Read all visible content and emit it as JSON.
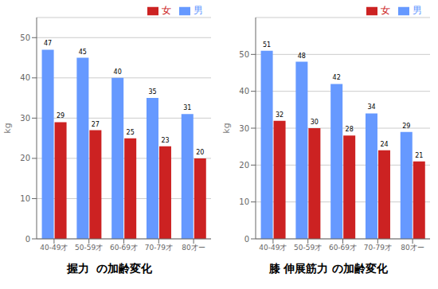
{
  "chart_data": [
    {
      "type": "bar",
      "title": "握力  の加齢変化",
      "categories": [
        "40-49才",
        "50-59才",
        "60-69才",
        "70-79才",
        "80才ー"
      ],
      "series": [
        {
          "name": "男",
          "color": "#6699FF",
          "values": [
            47,
            45,
            40,
            35,
            31
          ]
        },
        {
          "name": "女",
          "color": "#CC2222",
          "values": [
            29,
            27,
            25,
            23,
            20
          ]
        }
      ],
      "ylabel": "kg",
      "ylim": [
        0,
        55
      ],
      "yticks": [
        0,
        10,
        20,
        30,
        40,
        50
      ],
      "grid": true,
      "data_labels": true,
      "legend": "upper right"
    },
    {
      "type": "bar",
      "title": "膝 伸展筋力 の加齢変化",
      "categories": [
        "40-49才",
        "50-59才",
        "60-69才",
        "70-79才",
        "80才ー"
      ],
      "series": [
        {
          "name": "男",
          "color": "#6699FF",
          "values": [
            51,
            48,
            42,
            34,
            29
          ]
        },
        {
          "name": "女",
          "color": "#CC2222",
          "values": [
            32,
            30,
            28,
            24,
            21
          ]
        }
      ],
      "ylabel": "kg",
      "ylim": [
        0,
        60
      ],
      "yticks": [
        0,
        10,
        20,
        30,
        40,
        50
      ],
      "grid": true,
      "data_labels": true,
      "legend": "upper right"
    }
  ]
}
